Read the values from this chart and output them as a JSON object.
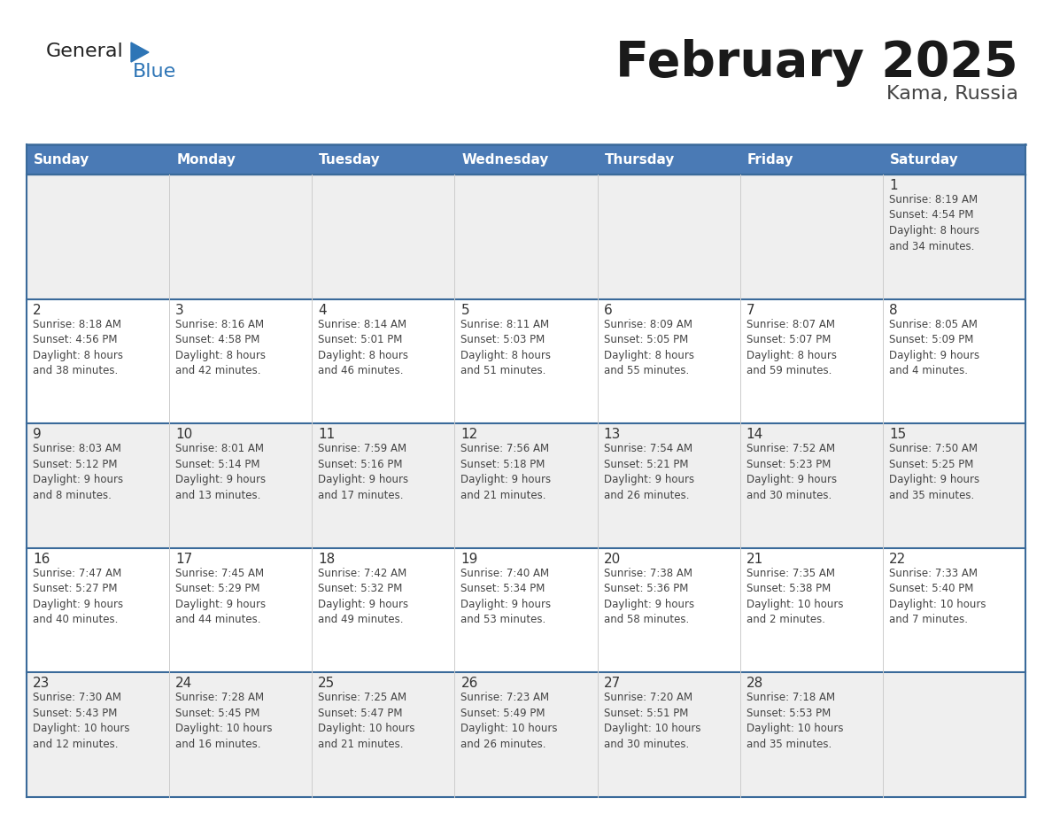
{
  "title": "February 2025",
  "subtitle": "Kama, Russia",
  "days_of_week": [
    "Sunday",
    "Monday",
    "Tuesday",
    "Wednesday",
    "Thursday",
    "Friday",
    "Saturday"
  ],
  "header_bg": "#4a7ab5",
  "header_text_color": "#ffffff",
  "row_odd_bg": "#efefef",
  "row_even_bg": "#ffffff",
  "cell_text_color": "#444444",
  "day_num_color": "#333333",
  "border_color": "#3a6a9a",
  "title_color": "#1a1a1a",
  "subtitle_color": "#444444",
  "logo_general_color": "#222222",
  "logo_blue_color": "#2e75b6",
  "logo_triangle_color": "#2e75b6",
  "weeks": [
    [
      {
        "day": "",
        "info": ""
      },
      {
        "day": "",
        "info": ""
      },
      {
        "day": "",
        "info": ""
      },
      {
        "day": "",
        "info": ""
      },
      {
        "day": "",
        "info": ""
      },
      {
        "day": "",
        "info": ""
      },
      {
        "day": "1",
        "info": "Sunrise: 8:19 AM\nSunset: 4:54 PM\nDaylight: 8 hours\nand 34 minutes."
      }
    ],
    [
      {
        "day": "2",
        "info": "Sunrise: 8:18 AM\nSunset: 4:56 PM\nDaylight: 8 hours\nand 38 minutes."
      },
      {
        "day": "3",
        "info": "Sunrise: 8:16 AM\nSunset: 4:58 PM\nDaylight: 8 hours\nand 42 minutes."
      },
      {
        "day": "4",
        "info": "Sunrise: 8:14 AM\nSunset: 5:01 PM\nDaylight: 8 hours\nand 46 minutes."
      },
      {
        "day": "5",
        "info": "Sunrise: 8:11 AM\nSunset: 5:03 PM\nDaylight: 8 hours\nand 51 minutes."
      },
      {
        "day": "6",
        "info": "Sunrise: 8:09 AM\nSunset: 5:05 PM\nDaylight: 8 hours\nand 55 minutes."
      },
      {
        "day": "7",
        "info": "Sunrise: 8:07 AM\nSunset: 5:07 PM\nDaylight: 8 hours\nand 59 minutes."
      },
      {
        "day": "8",
        "info": "Sunrise: 8:05 AM\nSunset: 5:09 PM\nDaylight: 9 hours\nand 4 minutes."
      }
    ],
    [
      {
        "day": "9",
        "info": "Sunrise: 8:03 AM\nSunset: 5:12 PM\nDaylight: 9 hours\nand 8 minutes."
      },
      {
        "day": "10",
        "info": "Sunrise: 8:01 AM\nSunset: 5:14 PM\nDaylight: 9 hours\nand 13 minutes."
      },
      {
        "day": "11",
        "info": "Sunrise: 7:59 AM\nSunset: 5:16 PM\nDaylight: 9 hours\nand 17 minutes."
      },
      {
        "day": "12",
        "info": "Sunrise: 7:56 AM\nSunset: 5:18 PM\nDaylight: 9 hours\nand 21 minutes."
      },
      {
        "day": "13",
        "info": "Sunrise: 7:54 AM\nSunset: 5:21 PM\nDaylight: 9 hours\nand 26 minutes."
      },
      {
        "day": "14",
        "info": "Sunrise: 7:52 AM\nSunset: 5:23 PM\nDaylight: 9 hours\nand 30 minutes."
      },
      {
        "day": "15",
        "info": "Sunrise: 7:50 AM\nSunset: 5:25 PM\nDaylight: 9 hours\nand 35 minutes."
      }
    ],
    [
      {
        "day": "16",
        "info": "Sunrise: 7:47 AM\nSunset: 5:27 PM\nDaylight: 9 hours\nand 40 minutes."
      },
      {
        "day": "17",
        "info": "Sunrise: 7:45 AM\nSunset: 5:29 PM\nDaylight: 9 hours\nand 44 minutes."
      },
      {
        "day": "18",
        "info": "Sunrise: 7:42 AM\nSunset: 5:32 PM\nDaylight: 9 hours\nand 49 minutes."
      },
      {
        "day": "19",
        "info": "Sunrise: 7:40 AM\nSunset: 5:34 PM\nDaylight: 9 hours\nand 53 minutes."
      },
      {
        "day": "20",
        "info": "Sunrise: 7:38 AM\nSunset: 5:36 PM\nDaylight: 9 hours\nand 58 minutes."
      },
      {
        "day": "21",
        "info": "Sunrise: 7:35 AM\nSunset: 5:38 PM\nDaylight: 10 hours\nand 2 minutes."
      },
      {
        "day": "22",
        "info": "Sunrise: 7:33 AM\nSunset: 5:40 PM\nDaylight: 10 hours\nand 7 minutes."
      }
    ],
    [
      {
        "day": "23",
        "info": "Sunrise: 7:30 AM\nSunset: 5:43 PM\nDaylight: 10 hours\nand 12 minutes."
      },
      {
        "day": "24",
        "info": "Sunrise: 7:28 AM\nSunset: 5:45 PM\nDaylight: 10 hours\nand 16 minutes."
      },
      {
        "day": "25",
        "info": "Sunrise: 7:25 AM\nSunset: 5:47 PM\nDaylight: 10 hours\nand 21 minutes."
      },
      {
        "day": "26",
        "info": "Sunrise: 7:23 AM\nSunset: 5:49 PM\nDaylight: 10 hours\nand 26 minutes."
      },
      {
        "day": "27",
        "info": "Sunrise: 7:20 AM\nSunset: 5:51 PM\nDaylight: 10 hours\nand 30 minutes."
      },
      {
        "day": "28",
        "info": "Sunrise: 7:18 AM\nSunset: 5:53 PM\nDaylight: 10 hours\nand 35 minutes."
      },
      {
        "day": "",
        "info": ""
      }
    ]
  ]
}
